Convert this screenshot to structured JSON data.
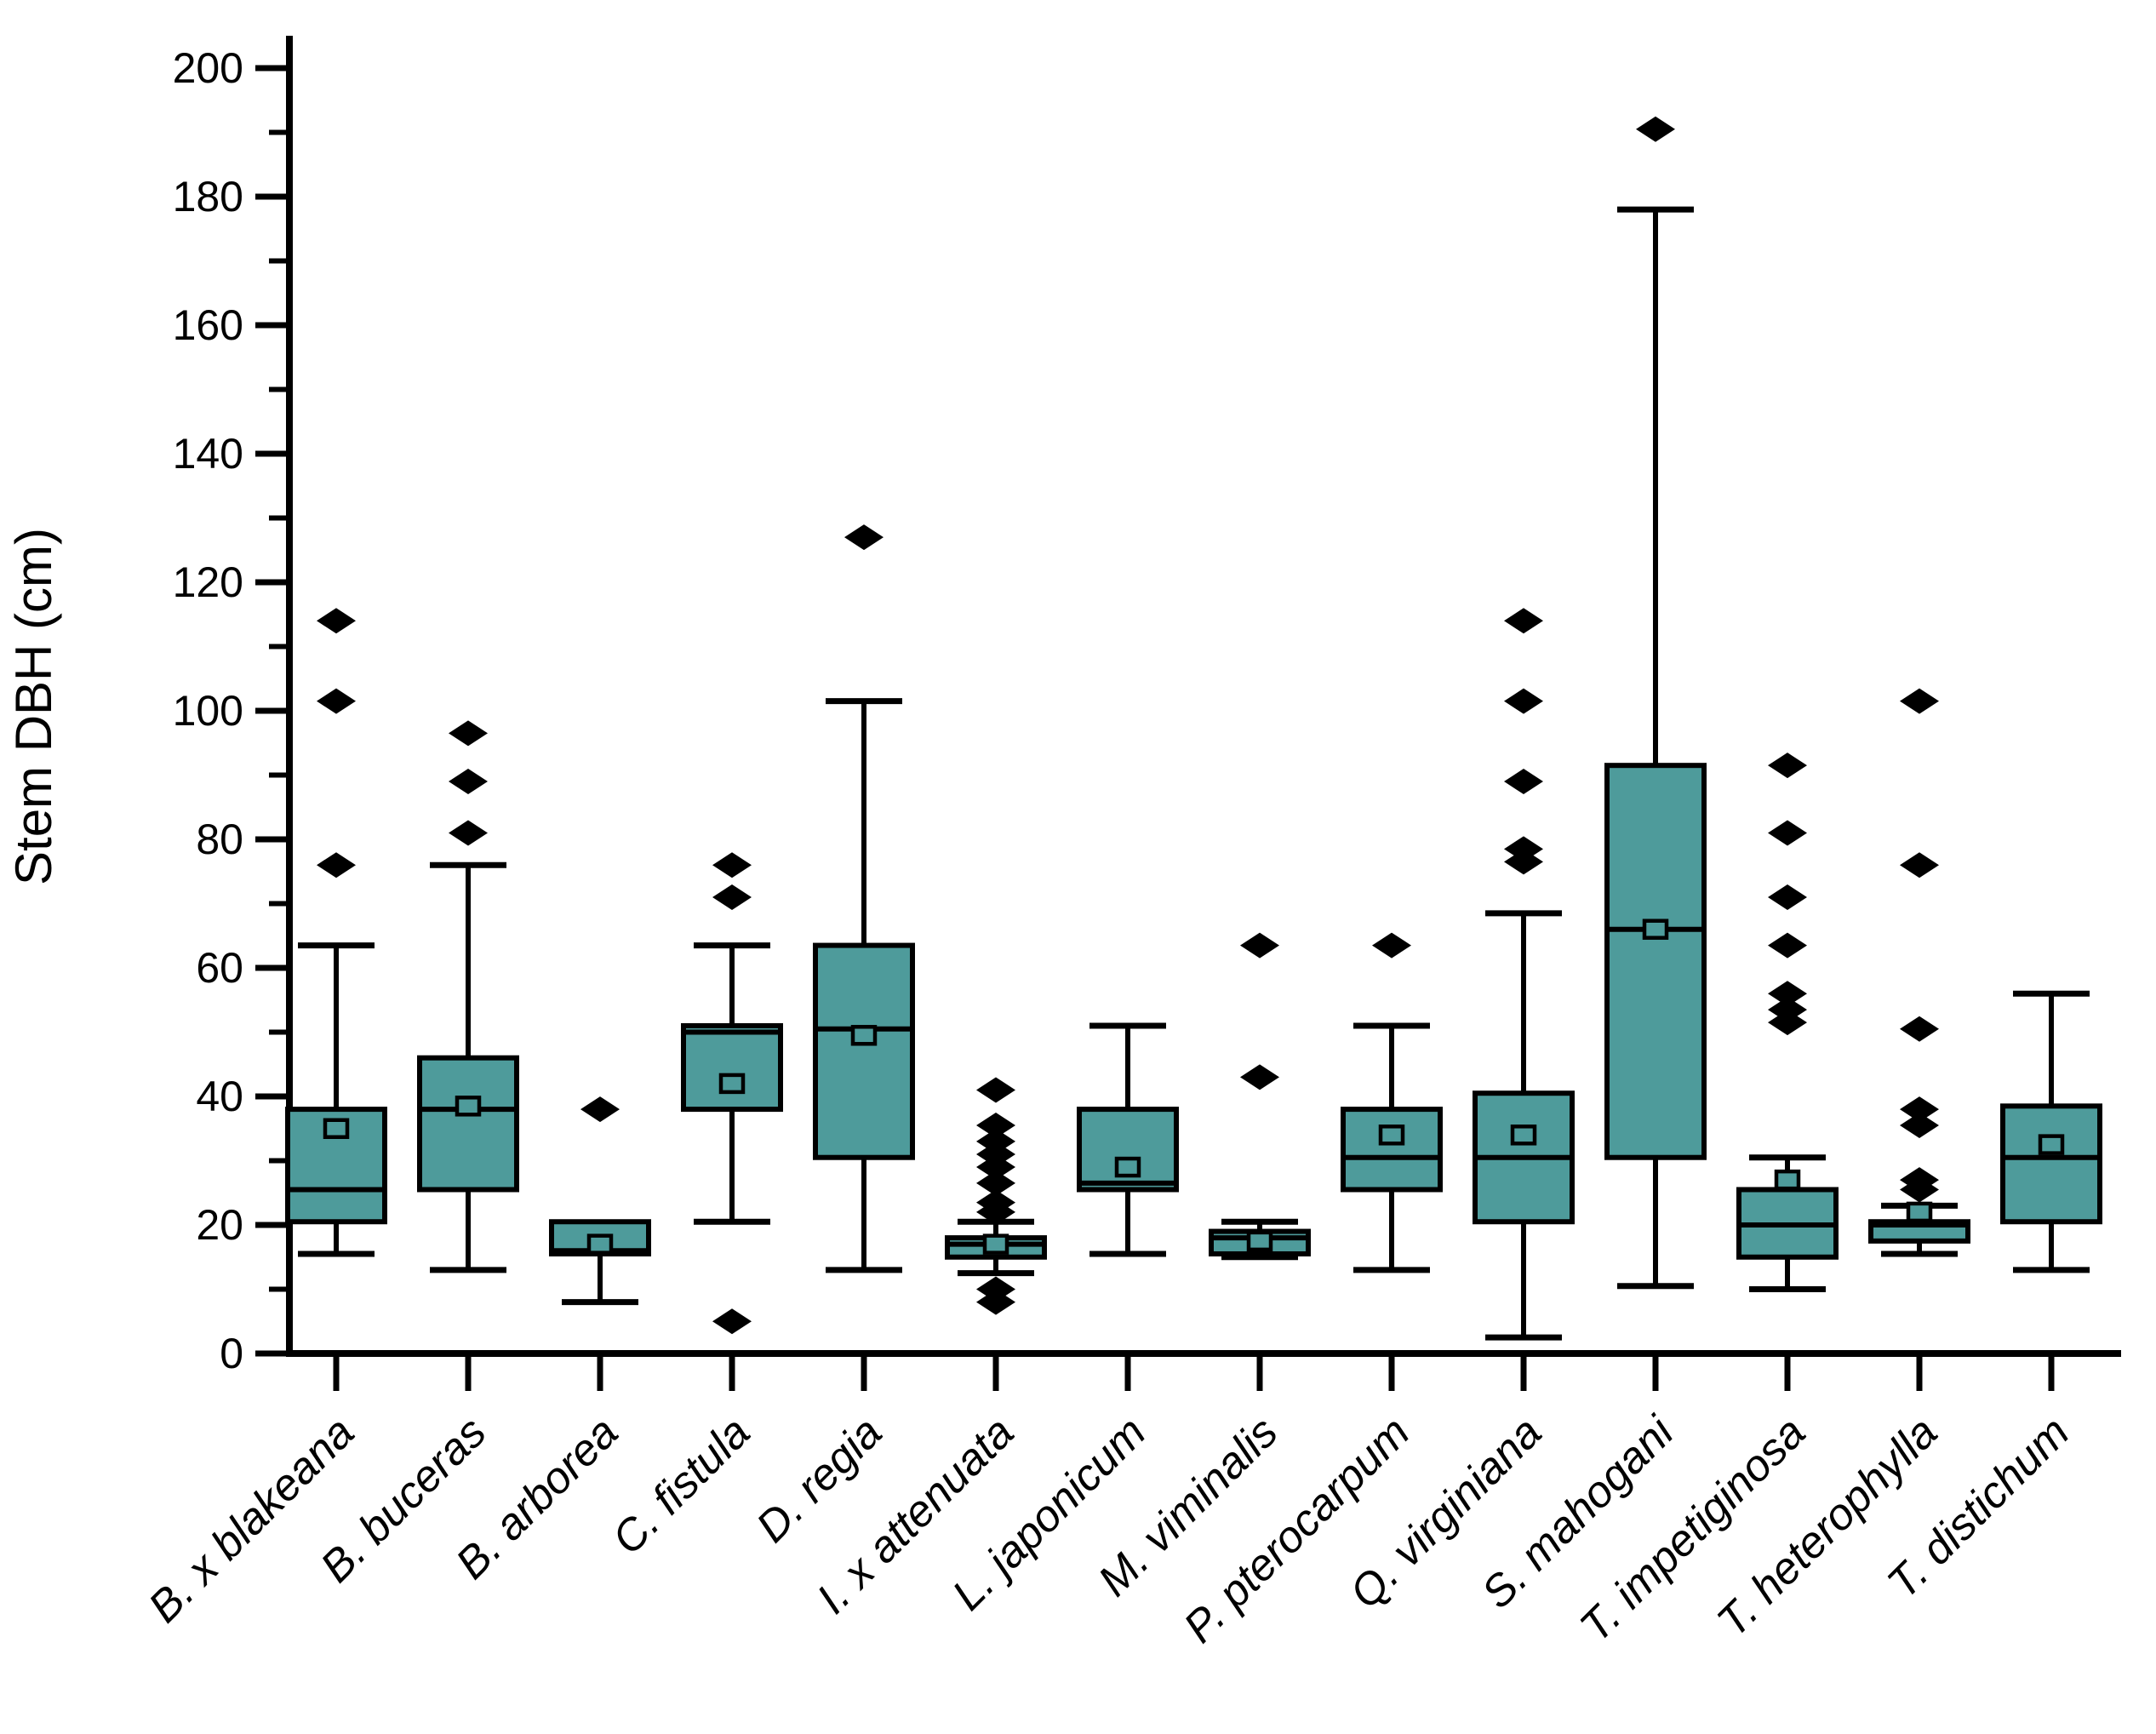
{
  "chart_data": {
    "type": "box",
    "title": "",
    "xlabel": "",
    "ylabel": "Stem DBH (cm)",
    "ylim": [
      0,
      200
    ],
    "ytick_step": 20,
    "yticks": [
      0,
      20,
      40,
      60,
      80,
      100,
      120,
      140,
      160,
      180,
      200
    ],
    "grid": "off",
    "legend": "none",
    "box_fill_color": "#4E9B9B",
    "line_color": "#000000",
    "outlier_marker": "filled-diamond",
    "mean_marker": "open-square",
    "categories": [
      "B. x blakeana",
      "B. buceras",
      "B. arborea",
      "C. fistula",
      "D. regia",
      "I. x attenuata",
      "L. japonicum",
      "M. viminalis",
      "P. pterocarpum",
      "Q. virginiana",
      "S. mahogani",
      "T. impetiginosa",
      "T. heterophylla",
      "T. distichum"
    ],
    "series": [
      {
        "name": "B. x blakeana",
        "whisker_low": 15.5,
        "q1": 20.5,
        "median": 25.5,
        "q3": 38,
        "whisker_high": 63.5,
        "mean": 35,
        "outliers": [
          76,
          101.5,
          114
        ]
      },
      {
        "name": "B. buceras",
        "whisker_low": 13,
        "q1": 25.5,
        "median": 38,
        "q3": 46,
        "whisker_high": 76,
        "mean": 38.5,
        "outliers": [
          81,
          89,
          96.5
        ]
      },
      {
        "name": "B. arborea",
        "whisker_low": 8,
        "q1": 15.5,
        "median": 16,
        "q3": 20.5,
        "whisker_high": 20.5,
        "mean": 17,
        "outliers": [
          38
        ]
      },
      {
        "name": "C. fistula",
        "whisker_low": 20.5,
        "q1": 38,
        "median": 50,
        "q3": 51,
        "whisker_high": 63.5,
        "mean": 42,
        "outliers": [
          5,
          71,
          76
        ]
      },
      {
        "name": "D. regia",
        "whisker_low": 13,
        "q1": 30.5,
        "median": 50.5,
        "q3": 63.5,
        "whisker_high": 101.5,
        "mean": 49.5,
        "outliers": [
          127
        ]
      },
      {
        "name": "I. x attenuata",
        "whisker_low": 12.5,
        "q1": 15,
        "median": 17,
        "q3": 18,
        "whisker_high": 20.5,
        "mean": 17,
        "outliers": [
          8,
          10,
          22,
          23.5,
          26.5,
          29,
          31,
          33,
          35.5,
          41
        ]
      },
      {
        "name": "L. japonicum",
        "whisker_low": 15.5,
        "q1": 25.5,
        "median": 26.5,
        "q3": 38,
        "whisker_high": 51,
        "mean": 29,
        "outliers": []
      },
      {
        "name": "M. viminalis",
        "whisker_low": 15,
        "q1": 15.5,
        "median": 18,
        "q3": 19,
        "whisker_high": 20.5,
        "mean": 17.5,
        "outliers": [
          43,
          63.5
        ]
      },
      {
        "name": "P. pterocarpum",
        "whisker_low": 13,
        "q1": 25.5,
        "median": 30.5,
        "q3": 38,
        "whisker_high": 51,
        "mean": 34,
        "outliers": [
          63.5
        ]
      },
      {
        "name": "Q. virginiana",
        "whisker_low": 2.5,
        "q1": 20.5,
        "median": 30.5,
        "q3": 40.5,
        "whisker_high": 68.5,
        "mean": 34,
        "outliers": [
          76.5,
          78.5,
          89,
          101.5,
          114
        ]
      },
      {
        "name": "S. mahogani",
        "whisker_low": 10.5,
        "q1": 30.5,
        "median": 66,
        "q3": 91.5,
        "whisker_high": 178,
        "mean": 66,
        "outliers": [
          190.5
        ]
      },
      {
        "name": "T. impetiginosa",
        "whisker_low": 10,
        "q1": 15,
        "median": 20,
        "q3": 25.5,
        "whisker_high": 30.5,
        "mean": 27,
        "outliers": [
          51.5,
          53.5,
          56,
          63.5,
          71,
          81,
          91.5
        ]
      },
      {
        "name": "T. heterophylla",
        "whisker_low": 15.5,
        "q1": 17.5,
        "median": 20,
        "q3": 20.5,
        "whisker_high": 23,
        "mean": 22,
        "outliers": [
          25.5,
          27,
          35.5,
          38,
          50.5,
          76,
          101.5
        ]
      },
      {
        "name": "T. distichum",
        "whisker_low": 13,
        "q1": 20.5,
        "median": 30.5,
        "q3": 38.5,
        "whisker_high": 56,
        "mean": 32.5,
        "outliers": []
      }
    ]
  }
}
